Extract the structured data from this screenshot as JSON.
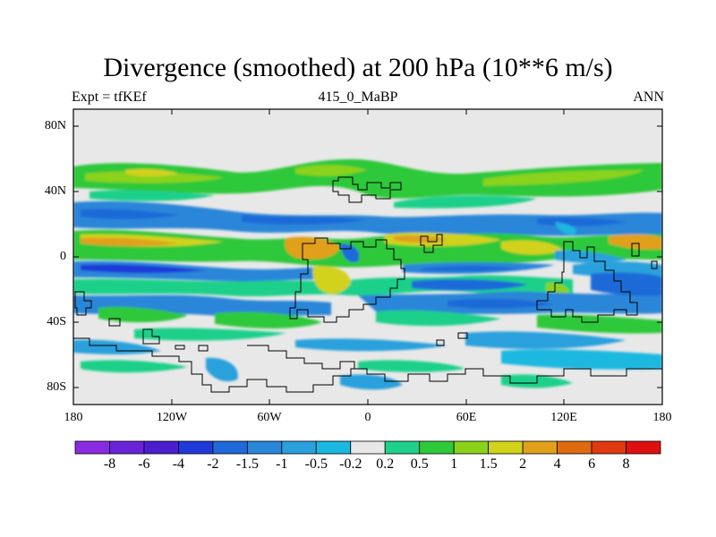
{
  "title": "Divergence (smoothed) at 200 hPa (10**6 m/s)",
  "subtitle_left": "Expt = tfKEf",
  "subtitle_center": "415_0_MaBP",
  "subtitle_right": "ANN",
  "lat_labels": [
    "80N",
    "40N",
    "0",
    "40S",
    "80S"
  ],
  "lon_labels": [
    "180",
    "120W",
    "60W",
    "0",
    "60E",
    "120E",
    "180"
  ],
  "colorbar": {
    "labels": [
      "-8",
      "-6",
      "-4",
      "-2",
      "-1.5",
      "-1",
      "-0.5",
      "-0.2",
      "0.2",
      "0.5",
      "1",
      "1.5",
      "2",
      "4",
      "6",
      "8"
    ],
    "colors": [
      "#8a2be2",
      "#6a23d8",
      "#4b1fd0",
      "#1f3ad9",
      "#1f6ad8",
      "#2a86d8",
      "#2aa0dc",
      "#1ab8e0",
      "#e8e8e8",
      "#1fd08a",
      "#2fc83a",
      "#8ad21a",
      "#d2d21a",
      "#e0a01a",
      "#e06a10",
      "#e03a10",
      "#e01010"
    ]
  },
  "map_colors": {
    "background": "#e8e8e8",
    "coastline": "#000000"
  }
}
